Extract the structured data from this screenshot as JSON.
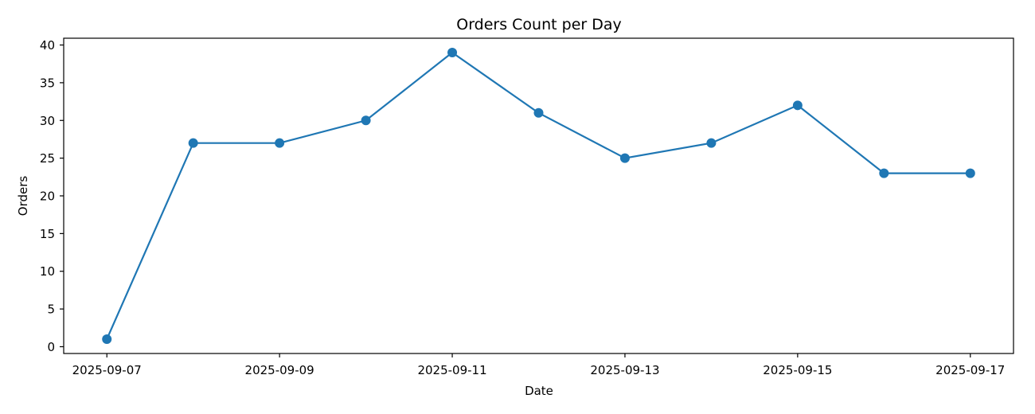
{
  "chart_data": {
    "type": "line",
    "title": "Orders Count per Day",
    "xlabel": "Date",
    "ylabel": "Orders",
    "x": [
      "2025-09-07",
      "2025-09-08",
      "2025-09-09",
      "2025-09-10",
      "2025-09-11",
      "2025-09-12",
      "2025-09-13",
      "2025-09-14",
      "2025-09-15",
      "2025-09-16",
      "2025-09-17"
    ],
    "values": [
      1,
      27,
      27,
      30,
      39,
      31,
      25,
      27,
      32,
      23,
      23
    ],
    "x_ticks": [
      "2025-09-07",
      "2025-09-09",
      "2025-09-11",
      "2025-09-13",
      "2025-09-15",
      "2025-09-17"
    ],
    "y_ticks": [
      0,
      5,
      10,
      15,
      20,
      25,
      30,
      35,
      40
    ],
    "ylim": [
      -0.9,
      40.9
    ],
    "xlim": [
      "2025-09-06T12:00",
      "2025-09-17T12:00"
    ],
    "grid": false,
    "series_color": "#1f77b4"
  }
}
